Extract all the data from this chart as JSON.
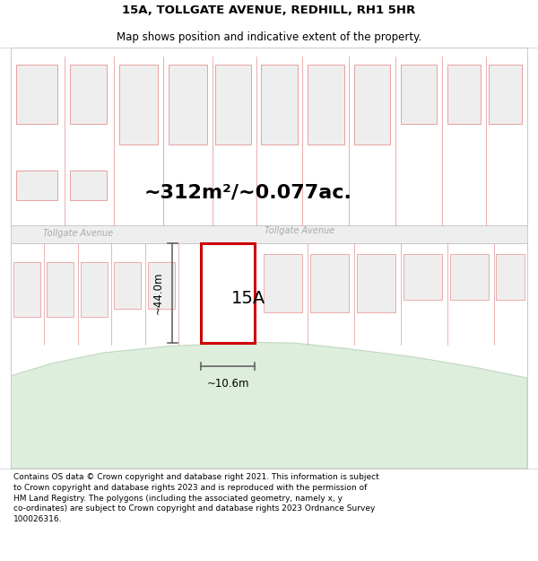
{
  "title_line1": "15A, TOLLGATE AVENUE, REDHILL, RH1 5HR",
  "title_line2": "Map shows position and indicative extent of the property.",
  "area_text": "~312m²/~0.077ac.",
  "label_15A": "15A",
  "street_name_left": "Tollgate Avenue",
  "street_name_right": "Tollgate Avenue",
  "dim_width": "~10.6m",
  "dim_height": "~44.0m",
  "footer_text": "Contains OS data © Crown copyright and database right 2021. This information is subject to Crown copyright and database rights 2023 and is reproduced with the permission of HM Land Registry. The polygons (including the associated geometry, namely x, y co-ordinates) are subject to Crown copyright and database rights 2023 Ordnance Survey 100026316.",
  "bg_color": "#ffffff",
  "map_bg": "#f7f7f7",
  "plot_border_color": "#cc0000",
  "plot_fill": "#ffffff",
  "other_plot_border": "#e8a0a0",
  "other_plot_fill": "#eeeeee",
  "green_area_color": "#ddeedd",
  "green_area_edge": "#c0d8c0",
  "dim_line_color": "#666666",
  "road_fill": "#eeeeee",
  "road_edge": "#cccccc",
  "street_text_color": "#aaaaaa"
}
